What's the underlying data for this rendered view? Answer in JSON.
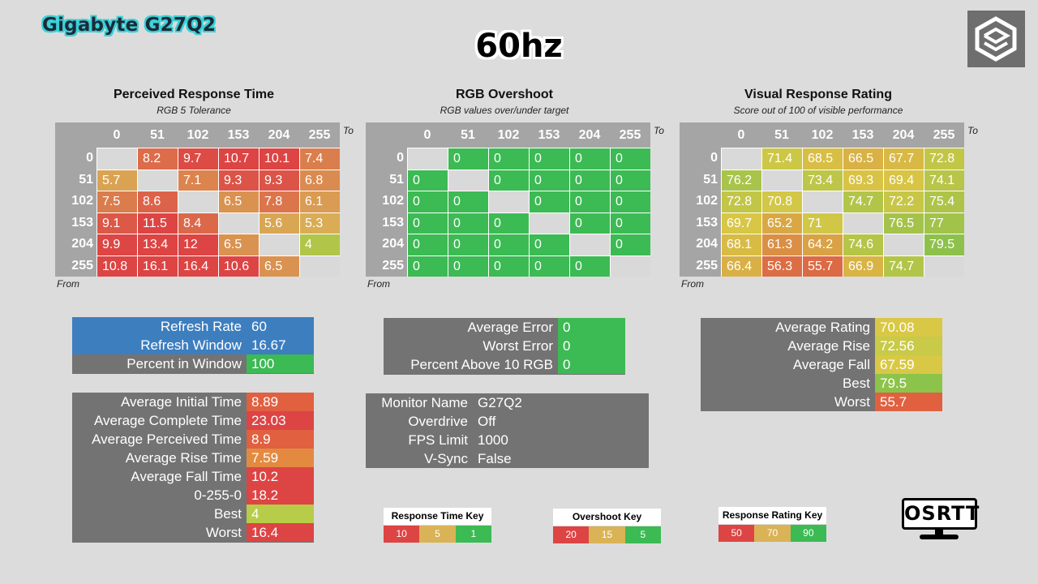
{
  "header": {
    "brand": "Gigabyte G27Q2",
    "refresh_title": "60hz"
  },
  "colors": {
    "red": "#dd4444",
    "orange_red": "#e06040",
    "orange": "#e38a40",
    "amber": "#e3a840",
    "yellow": "#d8c845",
    "yellow_green": "#b7cc48",
    "green": "#3cba54",
    "blue": "#3d7ebf",
    "gray": "#737373",
    "header_gray": "#a5a5a5",
    "empty": "#d9d9d9"
  },
  "chart_data": [
    {
      "type": "heatmap",
      "title": "Perceived Response Time",
      "subtitle": "RGB 5 Tolerance",
      "xlabel": "To",
      "ylabel": "From",
      "columns": [
        "0",
        "51",
        "102",
        "153",
        "204",
        "255"
      ],
      "rows": [
        "0",
        "51",
        "102",
        "153",
        "204",
        "255"
      ],
      "values": [
        [
          "",
          "8.2",
          "9.7",
          "10.7",
          "10.1",
          "7.4"
        ],
        [
          "5.7",
          "",
          "7.1",
          "9.3",
          "9.3",
          "6.8"
        ],
        [
          "7.5",
          "8.6",
          "",
          "6.5",
          "7.8",
          "6.1"
        ],
        [
          "9.1",
          "11.5",
          "8.4",
          "",
          "5.6",
          "5.3"
        ],
        [
          "9.9",
          "13.4",
          "12",
          "6.5",
          "",
          "4"
        ],
        [
          "10.8",
          "16.1",
          "16.4",
          "10.6",
          "6.5",
          ""
        ]
      ]
    },
    {
      "type": "heatmap",
      "title": "RGB Overshoot",
      "subtitle": "RGB values over/under target",
      "xlabel": "To",
      "ylabel": "From",
      "columns": [
        "0",
        "51",
        "102",
        "153",
        "204",
        "255"
      ],
      "rows": [
        "0",
        "51",
        "102",
        "153",
        "204",
        "255"
      ],
      "values": [
        [
          "",
          "0",
          "0",
          "0",
          "0",
          "0"
        ],
        [
          "0",
          "",
          "0",
          "0",
          "0",
          "0"
        ],
        [
          "0",
          "0",
          "",
          "0",
          "0",
          "0"
        ],
        [
          "0",
          "0",
          "0",
          "",
          "0",
          "0"
        ],
        [
          "0",
          "0",
          "0",
          "0",
          "",
          "0"
        ],
        [
          "0",
          "0",
          "0",
          "0",
          "0",
          ""
        ]
      ]
    },
    {
      "type": "heatmap",
      "title": "Visual Response Rating",
      "subtitle": "Score out of 100 of visible performance",
      "xlabel": "To",
      "ylabel": "From",
      "columns": [
        "0",
        "51",
        "102",
        "153",
        "204",
        "255"
      ],
      "rows": [
        "0",
        "51",
        "102",
        "153",
        "204",
        "255"
      ],
      "values": [
        [
          "",
          "71.4",
          "68.5",
          "66.5",
          "67.7",
          "72.8"
        ],
        [
          "76.2",
          "",
          "73.4",
          "69.3",
          "69.4",
          "74.1"
        ],
        [
          "72.8",
          "70.8",
          "",
          "74.7",
          "72.2",
          "75.4"
        ],
        [
          "69.7",
          "65.2",
          "71",
          "",
          "76.5",
          "77"
        ],
        [
          "68.1",
          "61.3",
          "64.2",
          "74.6",
          "",
          "79.5"
        ],
        [
          "66.4",
          "56.3",
          "55.7",
          "66.9",
          "74.7",
          ""
        ]
      ]
    }
  ],
  "refresh_table": [
    {
      "label": "Refresh Rate",
      "value": "60",
      "label_color": "#3d7ebf",
      "value_color": "#3d7ebf"
    },
    {
      "label": "Refresh Window",
      "value": "16.67",
      "label_color": "#3d7ebf",
      "value_color": "#3d7ebf"
    },
    {
      "label": "Percent in Window",
      "value": "100",
      "label_color": "#737373",
      "value_color": "#3cba54"
    }
  ],
  "response_table": [
    {
      "label": "Average Initial Time",
      "value": "8.89",
      "value_color": "#e06040"
    },
    {
      "label": "Average Complete Time",
      "value": "23.03",
      "value_color": "#dd4444"
    },
    {
      "label": "Average Perceived Time",
      "value": "8.9",
      "value_color": "#e06040"
    },
    {
      "label": "Average Rise Time",
      "value": "7.59",
      "value_color": "#e38a40"
    },
    {
      "label": "Average Fall Time",
      "value": "10.2",
      "value_color": "#dd4444"
    },
    {
      "label": "0-255-0",
      "value": "18.2",
      "value_color": "#dd4444"
    },
    {
      "label": "Best",
      "value": "4",
      "value_color": "#b7cc48"
    },
    {
      "label": "Worst",
      "value": "16.4",
      "value_color": "#dd4444"
    }
  ],
  "overshoot_table": [
    {
      "label": "Average Error",
      "value": "0",
      "value_color": "#3cba54"
    },
    {
      "label": "Worst Error",
      "value": "0",
      "value_color": "#3cba54"
    },
    {
      "label": "Percent Above 10 RGB",
      "value": "0",
      "value_color": "#3cba54"
    }
  ],
  "monitor_table": [
    {
      "label": "Monitor Name",
      "value": "G27Q2"
    },
    {
      "label": "Overdrive",
      "value": "Off"
    },
    {
      "label": "FPS Limit",
      "value": "1000"
    },
    {
      "label": "V-Sync",
      "value": "False"
    }
  ],
  "rating_table": [
    {
      "label": "Average Rating",
      "value": "70.08",
      "value_color": "#d8c845"
    },
    {
      "label": "Average Rise",
      "value": "72.56",
      "value_color": "#c8ca48"
    },
    {
      "label": "Average Fall",
      "value": "67.59",
      "value_color": "#d8c845"
    },
    {
      "label": "Best",
      "value": "79.5",
      "value_color": "#8cc34a"
    },
    {
      "label": "Worst",
      "value": "55.7",
      "value_color": "#e06040"
    }
  ],
  "keys": [
    {
      "title": "Response Time Key",
      "cells": [
        {
          "label": "10",
          "color": "#dd4444"
        },
        {
          "label": "5",
          "color": "#d9b356"
        },
        {
          "label": "1",
          "color": "#3cba54"
        }
      ]
    },
    {
      "title": "Overshoot Key",
      "cells": [
        {
          "label": "20",
          "color": "#dd4444"
        },
        {
          "label": "15",
          "color": "#d9b356"
        },
        {
          "label": "5",
          "color": "#3cba54"
        }
      ]
    },
    {
      "title": "Response Rating Key",
      "cells": [
        {
          "label": "50",
          "color": "#dd4444"
        },
        {
          "label": "70",
          "color": "#d9b356"
        },
        {
          "label": "90",
          "color": "#3cba54"
        }
      ]
    }
  ],
  "osrtt_logo": "OSRTT"
}
